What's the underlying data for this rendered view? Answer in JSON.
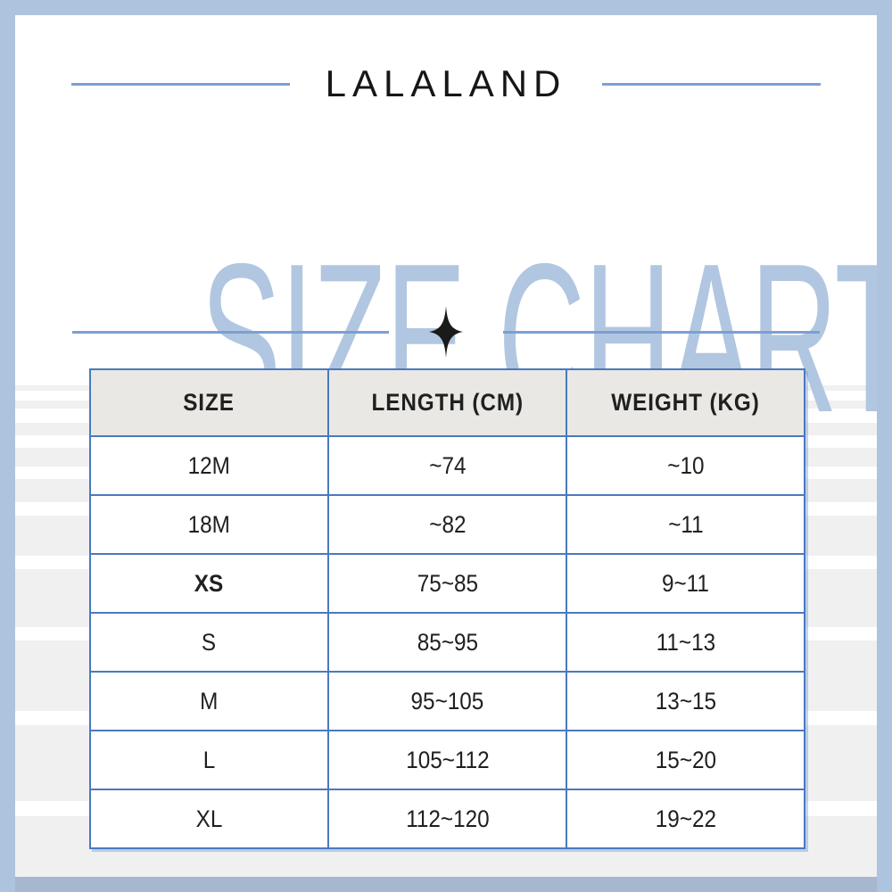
{
  "brand": {
    "name": "LALALAND"
  },
  "title": "SIZE CHART",
  "icons": {
    "divider_icon": "four-point-sparkle-icon"
  },
  "colors": {
    "frame": "#aec3dd",
    "frame_bottom": "#a6b7cf",
    "title_blue": "#b1c6e0",
    "rule_blue": "#7aa0d4",
    "table_border": "#4a79bf",
    "header_bg": "#e9e8e4",
    "stripe_gray": "#f0f0f0",
    "text": "#202020"
  },
  "chart_data": {
    "type": "table",
    "title": "SIZE CHART",
    "columns": [
      "SIZE",
      "LENGTH (CM)",
      "WEIGHT (KG)"
    ],
    "rows": [
      [
        "12M",
        "~74",
        "~10"
      ],
      [
        "18M",
        "~82",
        "~11"
      ],
      [
        "XS",
        "75~85",
        "9~11"
      ],
      [
        "S",
        "85~95",
        "11~13"
      ],
      [
        "M",
        "95~105",
        "13~15"
      ],
      [
        "L",
        "105~112",
        "15~20"
      ],
      [
        "XL",
        "112~120",
        "19~22"
      ]
    ]
  },
  "table": {
    "headers": [
      "SIZE",
      "LENGTH (CM)",
      "WEIGHT (KG)"
    ],
    "rows": [
      {
        "size": "12M",
        "length": "~74",
        "weight": "~10",
        "bold": false
      },
      {
        "size": "18M",
        "length": "~82",
        "weight": "~11",
        "bold": false
      },
      {
        "size": "XS",
        "length": "75~85",
        "weight": "9~11",
        "bold": true
      },
      {
        "size": "S",
        "length": "85~95",
        "weight": "11~13",
        "bold": false
      },
      {
        "size": "M",
        "length": "95~105",
        "weight": "13~15",
        "bold": false
      },
      {
        "size": "L",
        "length": "105~112",
        "weight": "15~20",
        "bold": false
      },
      {
        "size": "XL",
        "length": "112~120",
        "weight": "19~22",
        "bold": false
      }
    ]
  }
}
